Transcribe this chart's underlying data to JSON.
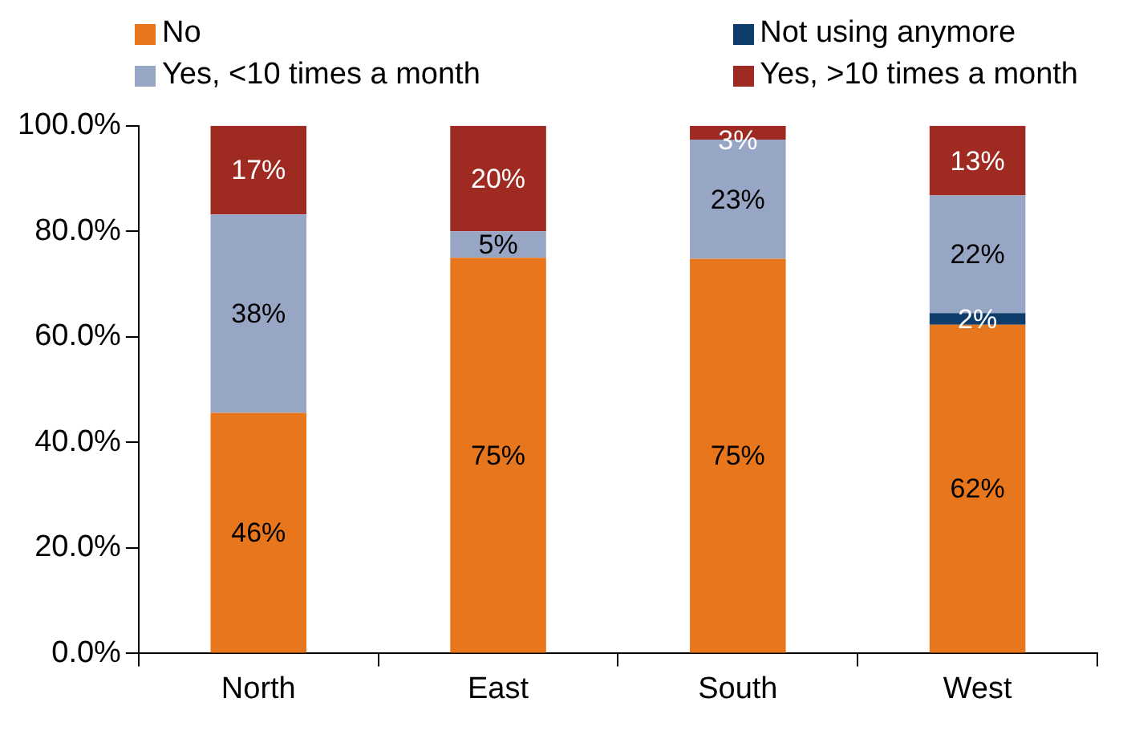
{
  "chart_data": {
    "type": "bar",
    "stacked": true,
    "categories": [
      "North",
      "East",
      "South",
      "West"
    ],
    "series": [
      {
        "name": "No",
        "color": "#e8761c",
        "values": [
          45.6,
          75,
          74.8,
          62.3
        ],
        "value_labels": [
          "46%",
          "75%",
          "75%",
          "62%"
        ]
      },
      {
        "name": "Not using anymore",
        "color": "#0e3c6b",
        "values": [
          0,
          0,
          0,
          2.2
        ],
        "value_labels": [
          null,
          null,
          null,
          "2%"
        ]
      },
      {
        "name": "Yes, <10 times a month",
        "color": "#98a6c6",
        "values": [
          37.6,
          5,
          22.6,
          22.3
        ],
        "value_labels": [
          "38%",
          "5%",
          "23%",
          "22%"
        ]
      },
      {
        "name": "Yes, >10 times a month",
        "color": "#9e2a22",
        "values": [
          16.8,
          20,
          2.6,
          13.2
        ],
        "value_labels": [
          "17%",
          "20%",
          "3%",
          "13%"
        ]
      }
    ],
    "ylim": [
      0,
      100
    ],
    "yticks": [
      {
        "value": 0,
        "label": "0.0%"
      },
      {
        "value": 20,
        "label": "20.0%"
      },
      {
        "value": 40,
        "label": "40.0%"
      },
      {
        "value": 60,
        "label": "60.0%"
      },
      {
        "value": 80,
        "label": "80.0%"
      },
      {
        "value": 100,
        "label": "100.0%"
      }
    ],
    "grid": false,
    "legend": "top"
  }
}
